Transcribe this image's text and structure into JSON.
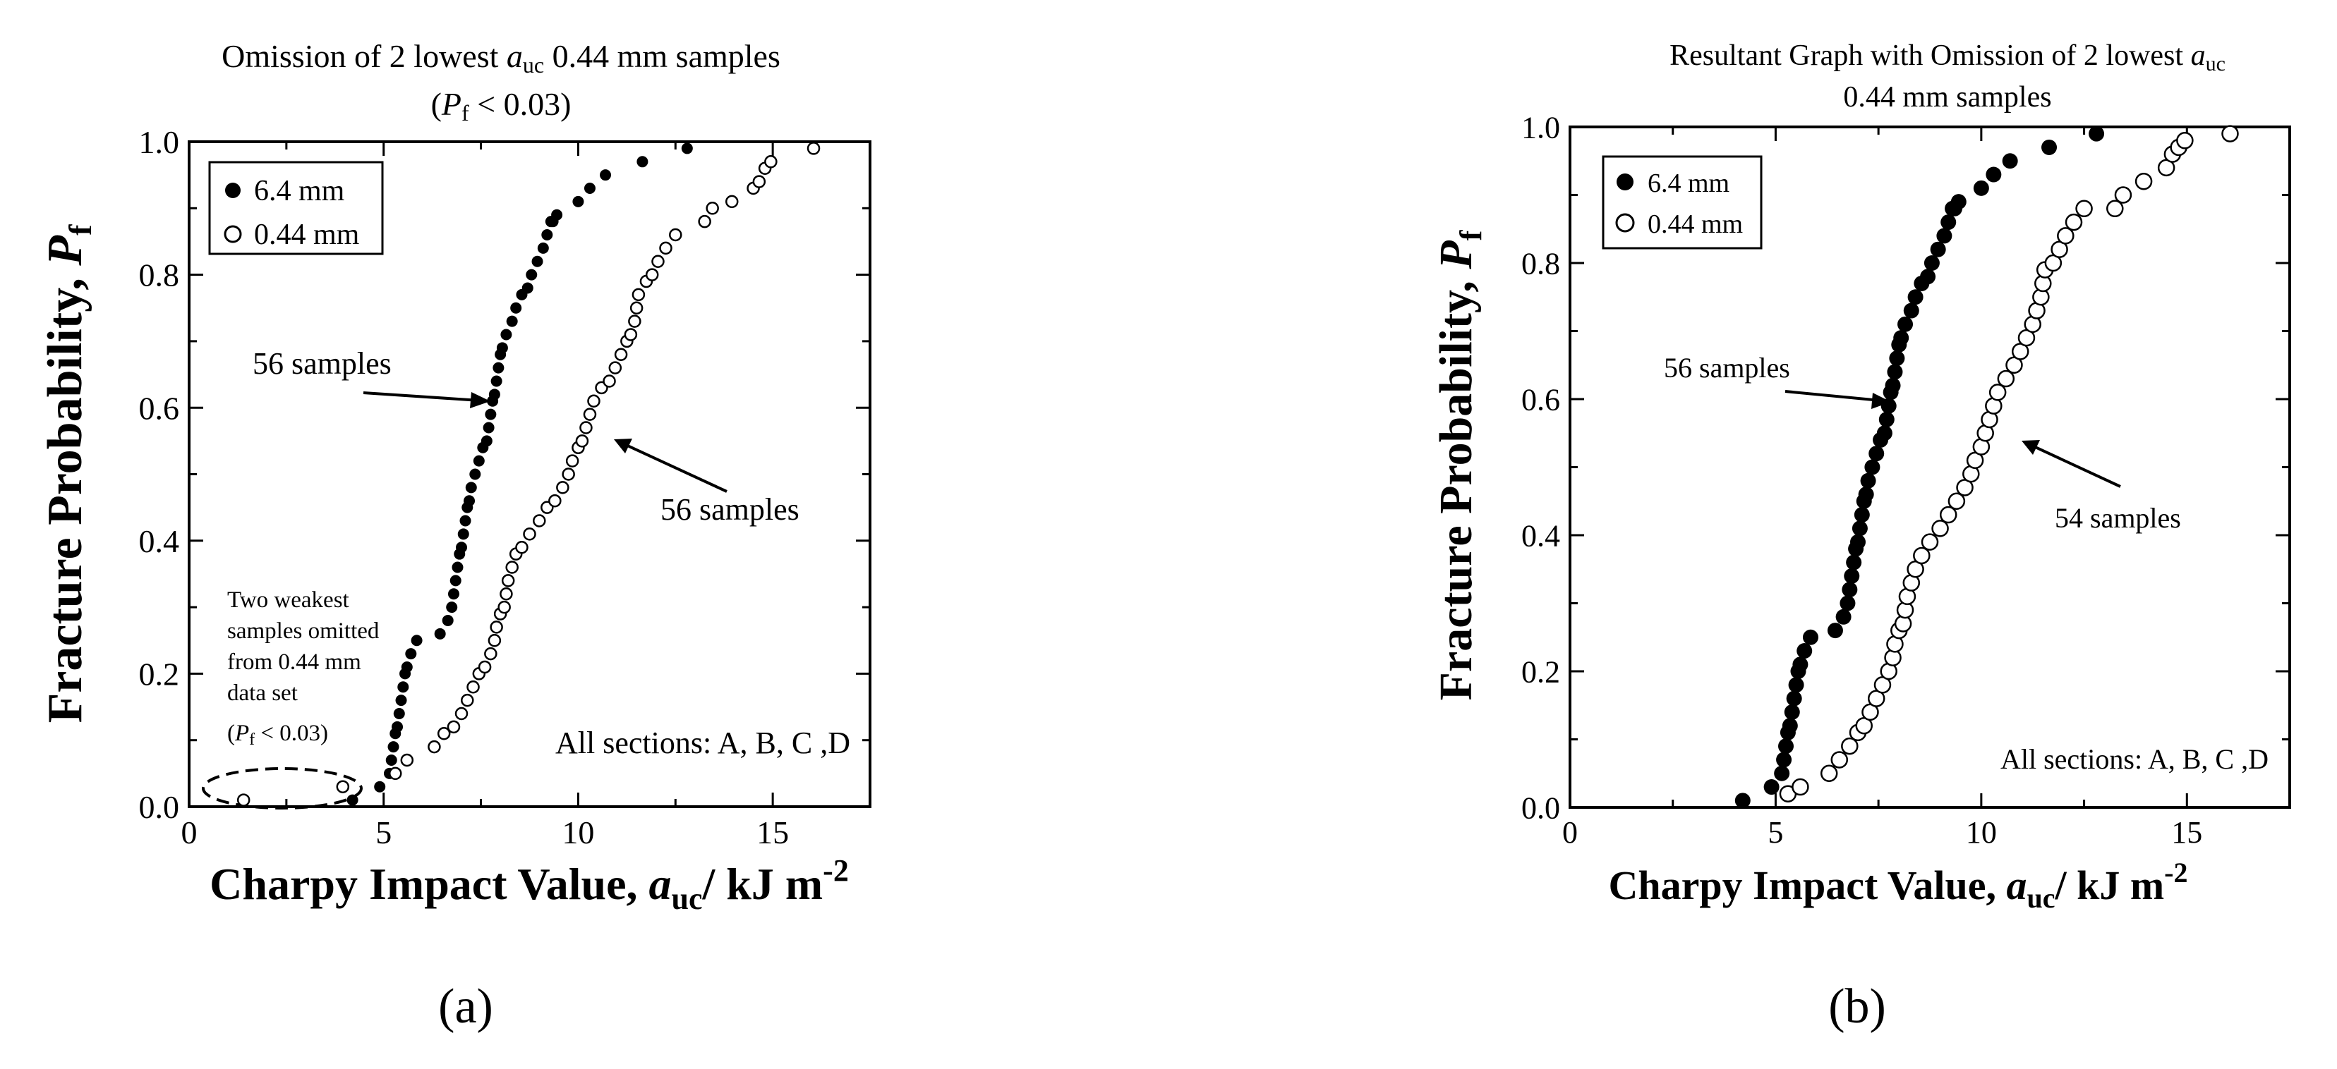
{
  "chart_data": [
    {
      "type": "scatter",
      "panel_label": "(a)",
      "title": {
        "line1_pre": "Omission of 2 lowest ",
        "line1_var": "a",
        "line1_sub": "uc",
        "line1_post": " 0.44 mm samples",
        "line2_pre": "(",
        "line2_var": "P",
        "line2_sub": "f",
        "line2_post": " < 0.03)"
      },
      "xlabel": {
        "pre": "Charpy Impact Value,  ",
        "var": "a",
        "sub": "uc",
        "post": "/ kJ m",
        "sup": "-2"
      },
      "ylabel": {
        "pre": "Fracture Probability,  ",
        "var": "P",
        "sub": "f"
      },
      "xlim": [
        0,
        17.5
      ],
      "ylim": [
        0,
        1.0
      ],
      "xticks": [
        "0",
        "5",
        "10",
        "15"
      ],
      "yticks": [
        "0.0",
        "0.2",
        "0.4",
        "0.6",
        "0.8",
        "1.0"
      ],
      "legend": [
        "6.4 mm",
        "0.44 mm"
      ],
      "annotations": {
        "arrow1": "56 samples",
        "arrow2": "56 samples",
        "omit_lines": [
          "Two weakest",
          "samples omitted",
          "from 0.44 mm",
          "data set"
        ],
        "omit_pf_pre": "(",
        "omit_pf_var": "P",
        "omit_pf_sub": "f",
        "omit_pf_post": " < 0.03)",
        "sections": "All sections: A, B, C ,D"
      },
      "series": [
        {
          "name": "6.4 mm",
          "x": [
            4.2,
            4.9,
            5.15,
            5.2,
            5.25,
            5.3,
            5.35,
            5.4,
            5.45,
            5.5,
            5.55,
            5.6,
            5.7,
            5.85,
            6.45,
            6.65,
            6.75,
            6.8,
            6.85,
            6.9,
            6.95,
            7.0,
            7.05,
            7.1,
            7.15,
            7.2,
            7.25,
            7.35,
            7.45,
            7.55,
            7.65,
            7.7,
            7.75,
            7.8,
            7.85,
            7.9,
            7.95,
            8.0,
            8.05,
            8.15,
            8.3,
            8.4,
            8.55,
            8.7,
            8.8,
            8.95,
            9.1,
            9.2,
            9.3,
            9.35,
            9.45,
            10.0,
            10.3,
            10.7,
            11.65,
            12.8
          ],
          "y": [
            0.01,
            0.03,
            0.05,
            0.07,
            0.09,
            0.11,
            0.12,
            0.14,
            0.16,
            0.18,
            0.2,
            0.21,
            0.23,
            0.25,
            0.26,
            0.28,
            0.3,
            0.32,
            0.34,
            0.36,
            0.38,
            0.39,
            0.41,
            0.43,
            0.45,
            0.46,
            0.48,
            0.5,
            0.52,
            0.54,
            0.55,
            0.57,
            0.59,
            0.61,
            0.62,
            0.64,
            0.66,
            0.68,
            0.69,
            0.71,
            0.73,
            0.75,
            0.77,
            0.78,
            0.8,
            0.82,
            0.84,
            0.86,
            0.88,
            0.88,
            0.89,
            0.91,
            0.93,
            0.95,
            0.97,
            0.99
          ]
        },
        {
          "name": "0.44 mm",
          "x": [
            1.4,
            3.95,
            5.3,
            5.6,
            6.3,
            6.55,
            6.8,
            7.0,
            7.15,
            7.3,
            7.45,
            7.6,
            7.75,
            7.85,
            7.9,
            8.0,
            8.1,
            8.15,
            8.2,
            8.3,
            8.4,
            8.55,
            8.75,
            9.0,
            9.2,
            9.4,
            9.6,
            9.75,
            9.85,
            10.0,
            10.1,
            10.2,
            10.3,
            10.4,
            10.6,
            10.8,
            10.95,
            11.1,
            11.25,
            11.35,
            11.45,
            11.5,
            11.55,
            11.75,
            11.9,
            12.05,
            12.25,
            12.5,
            13.25,
            13.45,
            13.95,
            14.5,
            14.65,
            14.8,
            14.95,
            16.05
          ],
          "y": [
            0.01,
            0.03,
            0.05,
            0.07,
            0.09,
            0.11,
            0.12,
            0.14,
            0.16,
            0.18,
            0.2,
            0.21,
            0.23,
            0.25,
            0.27,
            0.29,
            0.3,
            0.32,
            0.34,
            0.36,
            0.38,
            0.39,
            0.41,
            0.43,
            0.45,
            0.46,
            0.48,
            0.5,
            0.52,
            0.54,
            0.55,
            0.57,
            0.59,
            0.61,
            0.63,
            0.64,
            0.66,
            0.68,
            0.7,
            0.71,
            0.73,
            0.75,
            0.77,
            0.79,
            0.8,
            0.82,
            0.84,
            0.86,
            0.88,
            0.9,
            0.91,
            0.93,
            0.94,
            0.96,
            0.97,
            0.99
          ]
        }
      ]
    },
    {
      "type": "scatter",
      "panel_label": "(b)",
      "title": {
        "line1_pre": "Resultant Graph with Omission of 2 lowest ",
        "line1_var": "a",
        "line1_sub": "uc",
        "line2": "0.44 mm samples"
      },
      "xlabel": {
        "pre": "Charpy Impact Value,  ",
        "var": "a",
        "sub": "uc",
        "post": "/ kJ m",
        "sup": "-2"
      },
      "ylabel": {
        "pre": "Fracture Probability,  ",
        "var": "P",
        "sub": "f"
      },
      "xlim": [
        0,
        17.5
      ],
      "ylim": [
        0,
        1.0
      ],
      "xticks": [
        "0",
        "5",
        "10",
        "15"
      ],
      "yticks": [
        "0.0",
        "0.2",
        "0.4",
        "0.6",
        "0.8",
        "1.0"
      ],
      "legend": [
        "6.4 mm",
        "0.44 mm"
      ],
      "annotations": {
        "arrow1": "56 samples",
        "arrow2": "54 samples",
        "sections": "All sections: A, B, C ,D"
      },
      "series": [
        {
          "name": "6.4 mm",
          "x": [
            4.2,
            4.9,
            5.15,
            5.2,
            5.25,
            5.3,
            5.35,
            5.4,
            5.45,
            5.5,
            5.55,
            5.6,
            5.7,
            5.85,
            6.45,
            6.65,
            6.75,
            6.8,
            6.85,
            6.9,
            6.95,
            7.0,
            7.05,
            7.1,
            7.15,
            7.2,
            7.25,
            7.35,
            7.45,
            7.55,
            7.65,
            7.7,
            7.75,
            7.8,
            7.85,
            7.9,
            7.95,
            8.0,
            8.05,
            8.15,
            8.3,
            8.4,
            8.55,
            8.7,
            8.8,
            8.95,
            9.1,
            9.2,
            9.3,
            9.35,
            9.45,
            10.0,
            10.3,
            10.7,
            11.65,
            12.8
          ],
          "y": [
            0.01,
            0.03,
            0.05,
            0.07,
            0.09,
            0.11,
            0.12,
            0.14,
            0.16,
            0.18,
            0.2,
            0.21,
            0.23,
            0.25,
            0.26,
            0.28,
            0.3,
            0.32,
            0.34,
            0.36,
            0.38,
            0.39,
            0.41,
            0.43,
            0.45,
            0.46,
            0.48,
            0.5,
            0.52,
            0.54,
            0.55,
            0.57,
            0.59,
            0.61,
            0.62,
            0.64,
            0.66,
            0.68,
            0.69,
            0.71,
            0.73,
            0.75,
            0.77,
            0.78,
            0.8,
            0.82,
            0.84,
            0.86,
            0.88,
            0.88,
            0.89,
            0.91,
            0.93,
            0.95,
            0.97,
            0.99
          ]
        },
        {
          "name": "0.44 mm",
          "x": [
            5.3,
            5.6,
            6.3,
            6.55,
            6.8,
            7.0,
            7.15,
            7.3,
            7.45,
            7.6,
            7.75,
            7.85,
            7.9,
            8.0,
            8.1,
            8.15,
            8.2,
            8.3,
            8.4,
            8.55,
            8.75,
            9.0,
            9.2,
            9.4,
            9.6,
            9.75,
            9.85,
            10.0,
            10.1,
            10.2,
            10.3,
            10.4,
            10.6,
            10.8,
            10.95,
            11.1,
            11.25,
            11.35,
            11.45,
            11.5,
            11.55,
            11.75,
            11.9,
            12.05,
            12.25,
            12.5,
            13.25,
            13.45,
            13.95,
            14.5,
            14.65,
            14.8,
            14.95,
            16.05
          ],
          "y": [
            0.02,
            0.03,
            0.05,
            0.07,
            0.09,
            0.11,
            0.12,
            0.14,
            0.16,
            0.18,
            0.2,
            0.22,
            0.24,
            0.26,
            0.27,
            0.29,
            0.31,
            0.33,
            0.35,
            0.37,
            0.39,
            0.41,
            0.43,
            0.45,
            0.47,
            0.49,
            0.51,
            0.53,
            0.55,
            0.57,
            0.59,
            0.61,
            0.63,
            0.65,
            0.67,
            0.69,
            0.71,
            0.73,
            0.75,
            0.77,
            0.79,
            0.8,
            0.82,
            0.84,
            0.86,
            0.88,
            0.88,
            0.9,
            0.92,
            0.94,
            0.96,
            0.97,
            0.98,
            0.99
          ]
        }
      ]
    }
  ]
}
